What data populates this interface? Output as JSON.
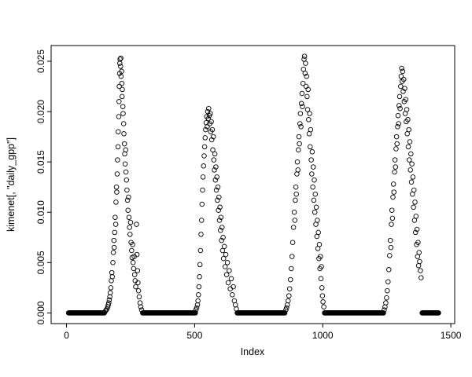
{
  "chart_data": {
    "type": "scatter",
    "title": "",
    "xlabel": "Index",
    "ylabel": "kimenet[, \"daily_gpp\"]",
    "xlim": [
      0,
      1500
    ],
    "ylim": [
      0.0,
      0.025
    ],
    "axis_range": {
      "x": [
        -60,
        1515
      ],
      "y": [
        -0.00106,
        0.02656
      ]
    },
    "x_ticks": [
      0,
      500,
      1000,
      1500
    ],
    "x_tick_labels": [
      "0",
      "500",
      "1000",
      "1500"
    ],
    "y_ticks": [
      0,
      0.005,
      0.01,
      0.015,
      0.02,
      0.025
    ],
    "y_tick_labels": [
      "0.000",
      "0.005",
      "0.010",
      "0.015",
      "0.020",
      "0.025"
    ],
    "grid": false,
    "legend": "none",
    "marker": {
      "shape": "open-circle",
      "radius": 2.8,
      "color": "#000000"
    },
    "background": "#ffffff",
    "zero_baseline_value": 0.0,
    "zero_runs": [
      [
        8,
        148
      ],
      [
        297,
        503
      ],
      [
        666,
        853
      ],
      [
        1007,
        1237
      ],
      [
        1388,
        1452
      ]
    ],
    "zero_step": 2,
    "seasons": [
      [
        [
          152,
          0.0002
        ],
        [
          155,
          0.0003
        ],
        [
          158,
          0.0004
        ],
        [
          161,
          0.0006
        ],
        [
          163,
          0.0008
        ],
        [
          165,
          0.001
        ],
        [
          167,
          0.0013
        ],
        [
          169,
          0.0016
        ],
        [
          171,
          0.002
        ],
        [
          173,
          0.0025
        ],
        [
          175,
          0.0032
        ],
        [
          177,
          0.004
        ],
        [
          179,
          0.0036
        ],
        [
          181,
          0.005
        ],
        [
          183,
          0.006
        ],
        [
          185,
          0.0072
        ],
        [
          186,
          0.0065
        ],
        [
          188,
          0.008
        ],
        [
          190,
          0.0095
        ],
        [
          192,
          0.0088
        ],
        [
          193,
          0.011
        ],
        [
          195,
          0.0125
        ],
        [
          196,
          0.012
        ],
        [
          198,
          0.0138
        ],
        [
          199,
          0.0152
        ],
        [
          201,
          0.0165
        ],
        [
          202,
          0.018
        ],
        [
          204,
          0.0195
        ],
        [
          205,
          0.021
        ],
        [
          206,
          0.0225
        ],
        [
          207,
          0.0238
        ],
        [
          208,
          0.0248
        ],
        [
          209,
          0.0252
        ],
        [
          211,
          0.0245
        ],
        [
          212,
          0.0253
        ],
        [
          213,
          0.0235
        ],
        [
          215,
          0.024
        ],
        [
          216,
          0.0228
        ],
        [
          217,
          0.0215
        ],
        [
          218,
          0.0222
        ],
        [
          220,
          0.0205
        ],
        [
          221,
          0.0198
        ],
        [
          223,
          0.0188
        ],
        [
          224,
          0.0178
        ],
        [
          226,
          0.0168
        ],
        [
          227,
          0.0158
        ],
        [
          229,
          0.0148
        ],
        [
          231,
          0.0162
        ],
        [
          232,
          0.014
        ],
        [
          234,
          0.0132
        ],
        [
          236,
          0.0122
        ],
        [
          238,
          0.0112
        ],
        [
          240,
          0.0102
        ],
        [
          242,
          0.0115
        ],
        [
          244,
          0.0095
        ],
        [
          246,
          0.0085
        ],
        [
          248,
          0.0078
        ],
        [
          250,
          0.009
        ],
        [
          252,
          0.007
        ],
        [
          254,
          0.0062
        ],
        [
          256,
          0.0055
        ],
        [
          258,
          0.0068
        ],
        [
          260,
          0.005
        ],
        [
          262,
          0.0044
        ],
        [
          264,
          0.0056
        ],
        [
          266,
          0.0038
        ],
        [
          268,
          0.0032
        ],
        [
          270,
          0.0026
        ],
        [
          273,
          0.0088
        ],
        [
          275,
          0.0058
        ],
        [
          277,
          0.0042
        ],
        [
          279,
          0.003
        ],
        [
          281,
          0.0022
        ],
        [
          284,
          0.0016
        ],
        [
          287,
          0.001
        ],
        [
          290,
          0.0006
        ],
        [
          293,
          0.0003
        ]
      ],
      [
        [
          505,
          0.0003
        ],
        [
          508,
          0.0005
        ],
        [
          511,
          0.0008
        ],
        [
          513,
          0.0012
        ],
        [
          515,
          0.0018
        ],
        [
          517,
          0.0026
        ],
        [
          519,
          0.0036
        ],
        [
          521,
          0.0048
        ],
        [
          523,
          0.0062
        ],
        [
          525,
          0.0078
        ],
        [
          527,
          0.0092
        ],
        [
          529,
          0.0108
        ],
        [
          531,
          0.0122
        ],
        [
          533,
          0.0135
        ],
        [
          535,
          0.0146
        ],
        [
          537,
          0.0156
        ],
        [
          539,
          0.0165
        ],
        [
          541,
          0.0174
        ],
        [
          543,
          0.0182
        ],
        [
          545,
          0.0189
        ],
        [
          547,
          0.0195
        ],
        [
          549,
          0.0185
        ],
        [
          551,
          0.02
        ],
        [
          553,
          0.0193
        ],
        [
          555,
          0.0203
        ],
        [
          557,
          0.0196
        ],
        [
          559,
          0.0188
        ],
        [
          561,
          0.0198
        ],
        [
          563,
          0.018
        ],
        [
          565,
          0.019
        ],
        [
          567,
          0.0172
        ],
        [
          569,
          0.0182
        ],
        [
          571,
          0.0162
        ],
        [
          573,
          0.0175
        ],
        [
          575,
          0.0152
        ],
        [
          577,
          0.0142
        ],
        [
          579,
          0.0158
        ],
        [
          581,
          0.0132
        ],
        [
          583,
          0.0145
        ],
        [
          585,
          0.0122
        ],
        [
          587,
          0.0135
        ],
        [
          589,
          0.0112
        ],
        [
          591,
          0.0125
        ],
        [
          593,
          0.0102
        ],
        [
          595,
          0.0115
        ],
        [
          597,
          0.0092
        ],
        [
          599,
          0.0105
        ],
        [
          601,
          0.0082
        ],
        [
          603,
          0.0095
        ],
        [
          605,
          0.0072
        ],
        [
          607,
          0.0085
        ],
        [
          609,
          0.0062
        ],
        [
          611,
          0.0075
        ],
        [
          613,
          0.0054
        ],
        [
          616,
          0.0066
        ],
        [
          619,
          0.0046
        ],
        [
          622,
          0.0058
        ],
        [
          625,
          0.0038
        ],
        [
          628,
          0.005
        ],
        [
          631,
          0.003
        ],
        [
          635,
          0.0042
        ],
        [
          639,
          0.0024
        ],
        [
          643,
          0.0034
        ],
        [
          647,
          0.0018
        ],
        [
          651,
          0.0026
        ],
        [
          655,
          0.0012
        ],
        [
          659,
          0.0008
        ],
        [
          663,
          0.0004
        ]
      ],
      [
        [
          856,
          0.0003
        ],
        [
          859,
          0.0005
        ],
        [
          862,
          0.0008
        ],
        [
          865,
          0.0012
        ],
        [
          868,
          0.0017
        ],
        [
          871,
          0.0024
        ],
        [
          874,
          0.0033
        ],
        [
          877,
          0.0044
        ],
        [
          880,
          0.0056
        ],
        [
          883,
          0.007
        ],
        [
          886,
          0.0085
        ],
        [
          889,
          0.01
        ],
        [
          891,
          0.0092
        ],
        [
          893,
          0.0112
        ],
        [
          895,
          0.0125
        ],
        [
          897,
          0.0118
        ],
        [
          899,
          0.0138
        ],
        [
          901,
          0.015
        ],
        [
          903,
          0.0142
        ],
        [
          905,
          0.0162
        ],
        [
          907,
          0.0175
        ],
        [
          909,
          0.0168
        ],
        [
          911,
          0.0188
        ],
        [
          913,
          0.0198
        ],
        [
          915,
          0.0185
        ],
        [
          917,
          0.0208
        ],
        [
          919,
          0.0218
        ],
        [
          921,
          0.0205
        ],
        [
          923,
          0.0228
        ],
        [
          925,
          0.0242
        ],
        [
          927,
          0.0252
        ],
        [
          929,
          0.0255
        ],
        [
          931,
          0.0238
        ],
        [
          933,
          0.0248
        ],
        [
          935,
          0.0225
        ],
        [
          937,
          0.0235
        ],
        [
          939,
          0.0215
        ],
        [
          941,
          0.0202
        ],
        [
          943,
          0.0222
        ],
        [
          945,
          0.0192
        ],
        [
          947,
          0.0178
        ],
        [
          949,
          0.0198
        ],
        [
          951,
          0.0165
        ],
        [
          953,
          0.0182
        ],
        [
          955,
          0.0152
        ],
        [
          957,
          0.0138
        ],
        [
          959,
          0.016
        ],
        [
          961,
          0.0125
        ],
        [
          963,
          0.0145
        ],
        [
          965,
          0.0112
        ],
        [
          967,
          0.0132
        ],
        [
          969,
          0.01
        ],
        [
          971,
          0.0118
        ],
        [
          973,
          0.0088
        ],
        [
          975,
          0.0105
        ],
        [
          977,
          0.0076
        ],
        [
          979,
          0.0092
        ],
        [
          981,
          0.0064
        ],
        [
          983,
          0.008
        ],
        [
          985,
          0.0054
        ],
        [
          987,
          0.0068
        ],
        [
          989,
          0.0044
        ],
        [
          991,
          0.0056
        ],
        [
          993,
          0.0034
        ],
        [
          995,
          0.0046
        ],
        [
          997,
          0.0025
        ],
        [
          999,
          0.0017
        ],
        [
          1001,
          0.0011
        ],
        [
          1004,
          0.0006
        ]
      ],
      [
        [
          1240,
          0.0003
        ],
        [
          1243,
          0.0006
        ],
        [
          1246,
          0.001
        ],
        [
          1249,
          0.0015
        ],
        [
          1252,
          0.0022
        ],
        [
          1255,
          0.0031
        ],
        [
          1258,
          0.0043
        ],
        [
          1261,
          0.0057
        ],
        [
          1264,
          0.0072
        ],
        [
          1266,
          0.0065
        ],
        [
          1268,
          0.0088
        ],
        [
          1270,
          0.0102
        ],
        [
          1272,
          0.0094
        ],
        [
          1274,
          0.0115
        ],
        [
          1276,
          0.0128
        ],
        [
          1278,
          0.012
        ],
        [
          1280,
          0.014
        ],
        [
          1282,
          0.0152
        ],
        [
          1284,
          0.0145
        ],
        [
          1286,
          0.0163
        ],
        [
          1288,
          0.0175
        ],
        [
          1290,
          0.0168
        ],
        [
          1292,
          0.0185
        ],
        [
          1294,
          0.0196
        ],
        [
          1296,
          0.0188
        ],
        [
          1298,
          0.0206
        ],
        [
          1300,
          0.0215
        ],
        [
          1302,
          0.0203
        ],
        [
          1304,
          0.0225
        ],
        [
          1306,
          0.0235
        ],
        [
          1308,
          0.0243
        ],
        [
          1310,
          0.023
        ],
        [
          1312,
          0.024
        ],
        [
          1314,
          0.022
        ],
        [
          1316,
          0.0232
        ],
        [
          1318,
          0.021
        ],
        [
          1320,
          0.0223
        ],
        [
          1322,
          0.0198
        ],
        [
          1324,
          0.0212
        ],
        [
          1326,
          0.019
        ],
        [
          1328,
          0.0202
        ],
        [
          1330,
          0.0178
        ],
        [
          1332,
          0.0192
        ],
        [
          1334,
          0.0165
        ],
        [
          1336,
          0.0182
        ],
        [
          1338,
          0.0152
        ],
        [
          1340,
          0.017
        ],
        [
          1342,
          0.0142
        ],
        [
          1344,
          0.0158
        ],
        [
          1346,
          0.013
        ],
        [
          1348,
          0.0148
        ],
        [
          1350,
          0.0118
        ],
        [
          1352,
          0.0135
        ],
        [
          1354,
          0.0105
        ],
        [
          1356,
          0.0122
        ],
        [
          1358,
          0.0092
        ],
        [
          1360,
          0.011
        ],
        [
          1362,
          0.008
        ],
        [
          1364,
          0.0096
        ],
        [
          1366,
          0.0068
        ],
        [
          1368,
          0.0083
        ],
        [
          1370,
          0.0056
        ],
        [
          1372,
          0.007
        ],
        [
          1374,
          0.0047
        ],
        [
          1376,
          0.006
        ],
        [
          1378,
          0.0051
        ],
        [
          1381,
          0.0042
        ],
        [
          1384,
          0.0035
        ]
      ]
    ]
  }
}
